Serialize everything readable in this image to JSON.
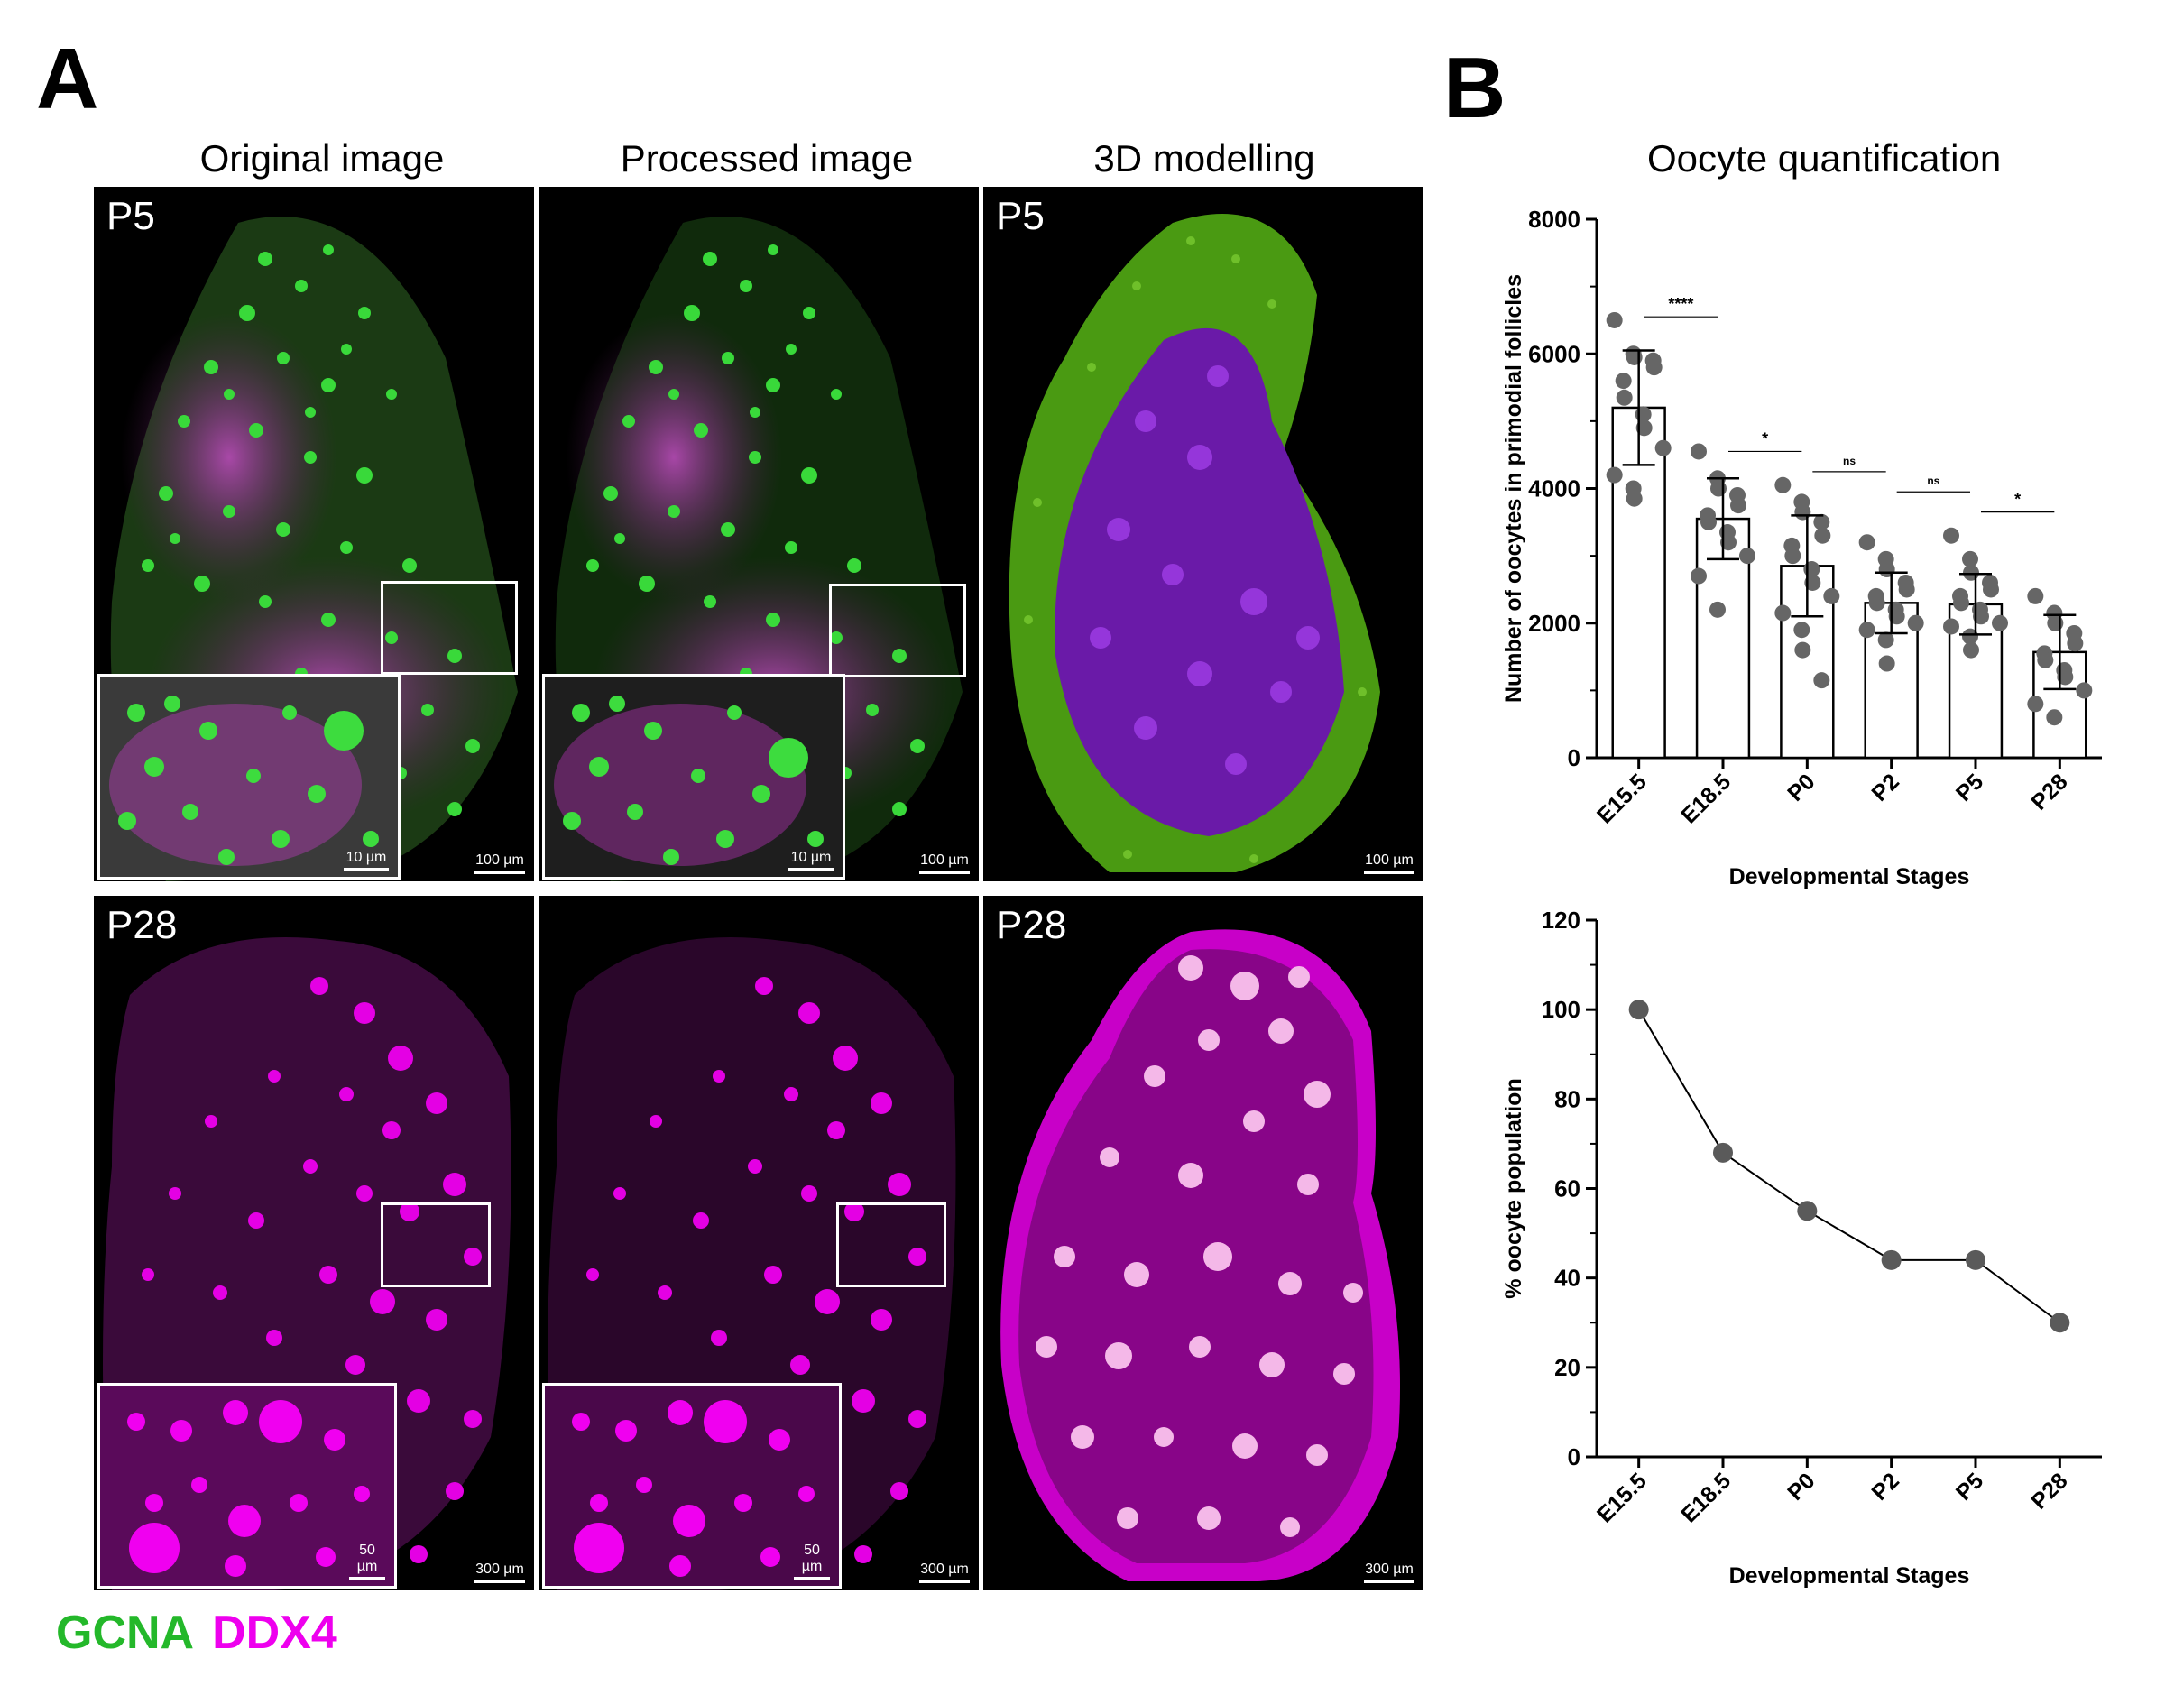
{
  "panels": {
    "A": "A",
    "B": "B"
  },
  "column_titles": [
    "Original image",
    "Processed image",
    "3D modelling"
  ],
  "rows": [
    {
      "stage": "P5",
      "scale_main": "100 µm",
      "scale_inset": "10 µm"
    },
    {
      "stage": "P28",
      "scale_main": "300 µm",
      "scale_inset": "50 µm"
    }
  ],
  "legend": {
    "gcna": "GCNA",
    "ddx4": "DDX4",
    "gcna_color": "#24b82a",
    "ddx4_color": "#ee00ee"
  },
  "chart_title": "Oocyte quantification",
  "chart_data": [
    {
      "type": "bar",
      "categories": [
        "E15.5",
        "E18.5",
        "P0",
        "P2",
        "P5",
        "P28"
      ],
      "values": [
        5200,
        3550,
        2850,
        2300,
        2280,
        1570
      ],
      "error": [
        850,
        600,
        750,
        450,
        450,
        550
      ],
      "points": [
        [
          6500,
          6000,
          5950,
          5900,
          5800,
          5600,
          5350,
          5100,
          4900,
          4600,
          4200,
          4000,
          3850
        ],
        [
          4550,
          4150,
          4000,
          3900,
          3750,
          3600,
          3500,
          3350,
          3200,
          3000,
          2700,
          2200
        ],
        [
          4050,
          3800,
          3650,
          3500,
          3300,
          3150,
          3000,
          2800,
          2600,
          2400,
          2150,
          1900,
          1600,
          1150
        ],
        [
          3200,
          2950,
          2800,
          2600,
          2500,
          2400,
          2300,
          2200,
          2100,
          2000,
          1900,
          1750,
          1400
        ],
        [
          3300,
          2950,
          2750,
          2600,
          2500,
          2400,
          2300,
          2200,
          2100,
          2000,
          1950,
          1800,
          1600
        ],
        [
          2400,
          2150,
          2000,
          1850,
          1700,
          1550,
          1450,
          1300,
          1200,
          1000,
          800,
          600
        ]
      ],
      "significance": [
        {
          "from": "E15.5",
          "to": "E18.5",
          "label": "****"
        },
        {
          "from": "E18.5",
          "to": "P0",
          "label": "*"
        },
        {
          "from": "P0",
          "to": "P2",
          "label": "ns"
        },
        {
          "from": "P2",
          "to": "P5",
          "label": "ns"
        },
        {
          "from": "P5",
          "to": "P28",
          "label": "*"
        }
      ],
      "ylabel": "Number of oocytes in primodial follicles",
      "xlabel": "Developmental Stages",
      "ylim": [
        0,
        8000
      ],
      "yticks": [
        0,
        2000,
        4000,
        6000,
        8000
      ]
    },
    {
      "type": "line",
      "categories": [
        "E15.5",
        "E18.5",
        "P0",
        "P2",
        "P5",
        "P28"
      ],
      "values": [
        100,
        68,
        55,
        44,
        44,
        30
      ],
      "ylabel": "% oocyte population",
      "xlabel": "Developmental Stages",
      "ylim": [
        0,
        120
      ],
      "yticks": [
        0,
        20,
        40,
        60,
        80,
        100,
        120
      ]
    }
  ]
}
